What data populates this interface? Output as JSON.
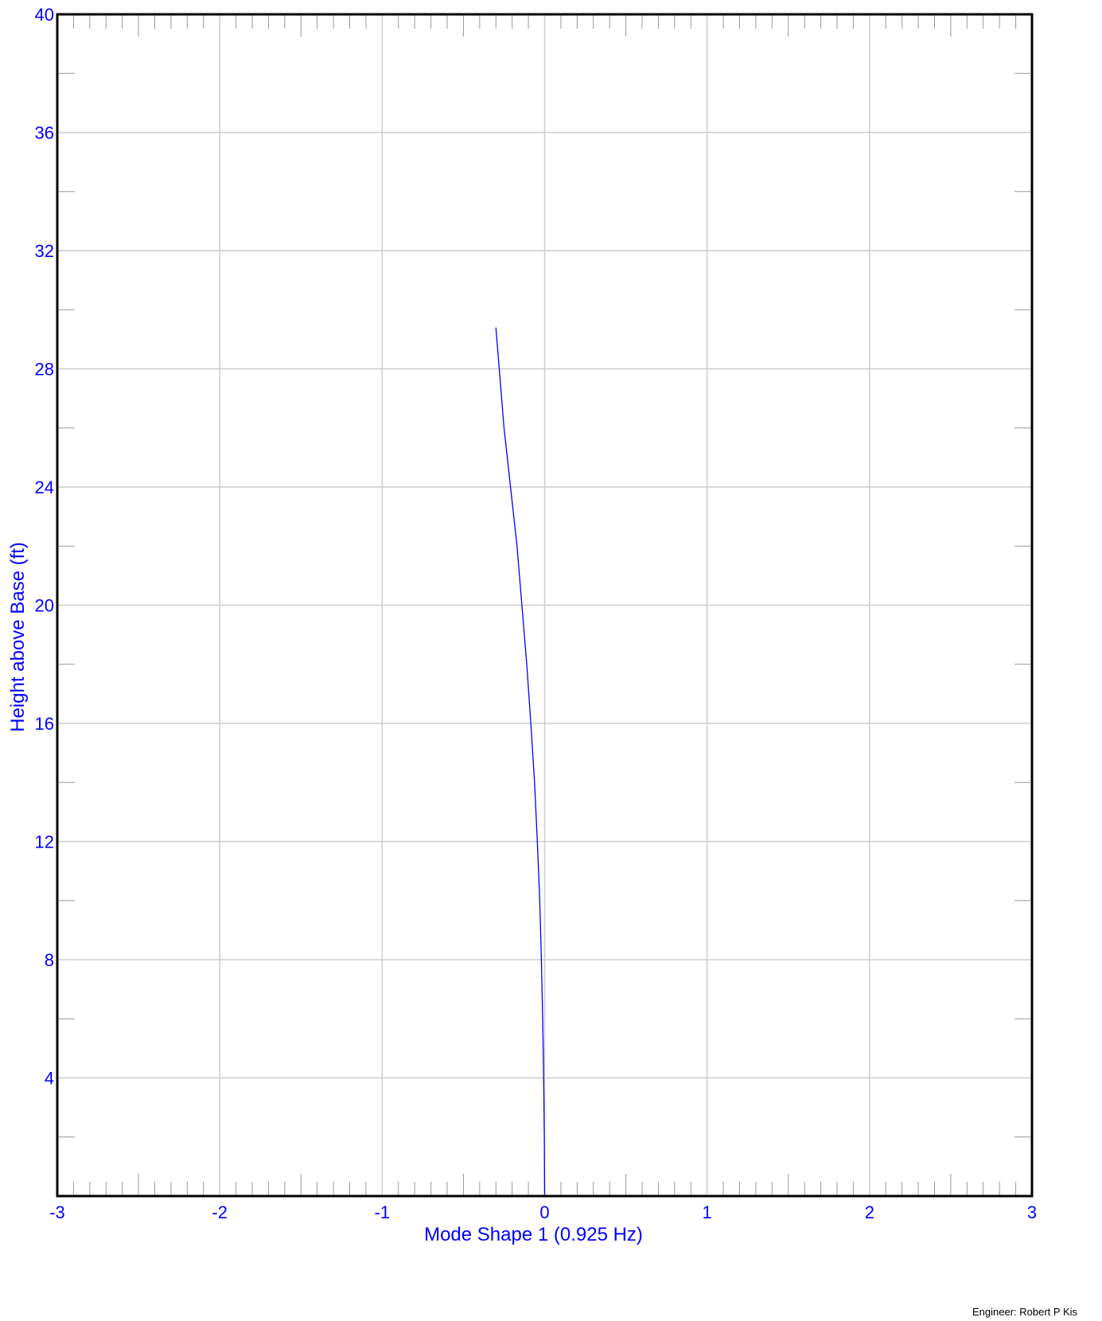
{
  "colors": {
    "axis_text": "#0000ff",
    "series": "#0000ff",
    "grid": "#cccccc",
    "frame": "#000000",
    "minor_tick": "#999999"
  },
  "chart_data": {
    "type": "line",
    "xlabel": "Mode Shape 1 (0.925 Hz)",
    "ylabel": "Height above Base (ft)",
    "xlim": [
      -3,
      3
    ],
    "ylim": [
      0,
      40
    ],
    "x_ticks": [
      -3,
      -2,
      -1,
      0,
      1,
      2,
      3
    ],
    "y_ticks": [
      4,
      8,
      12,
      16,
      20,
      24,
      28,
      32,
      36,
      40
    ],
    "x_minor_step": 0.1,
    "y_minor_step": 2,
    "grid": true,
    "legend": "none",
    "series": [
      {
        "color": "#0000ff",
        "x": [
          0,
          -0.002,
          -0.006,
          -0.012,
          -0.02,
          -0.03,
          -0.045,
          -0.062,
          -0.085,
          -0.11,
          -0.14,
          -0.17,
          -0.21,
          -0.25,
          -0.3
        ],
        "y": [
          0,
          2,
          4,
          6,
          8,
          10,
          12,
          14,
          16,
          18,
          20,
          22,
          24,
          26,
          29.4
        ]
      }
    ]
  },
  "footer": {
    "engineer": "Engineer: Robert P Kis"
  }
}
